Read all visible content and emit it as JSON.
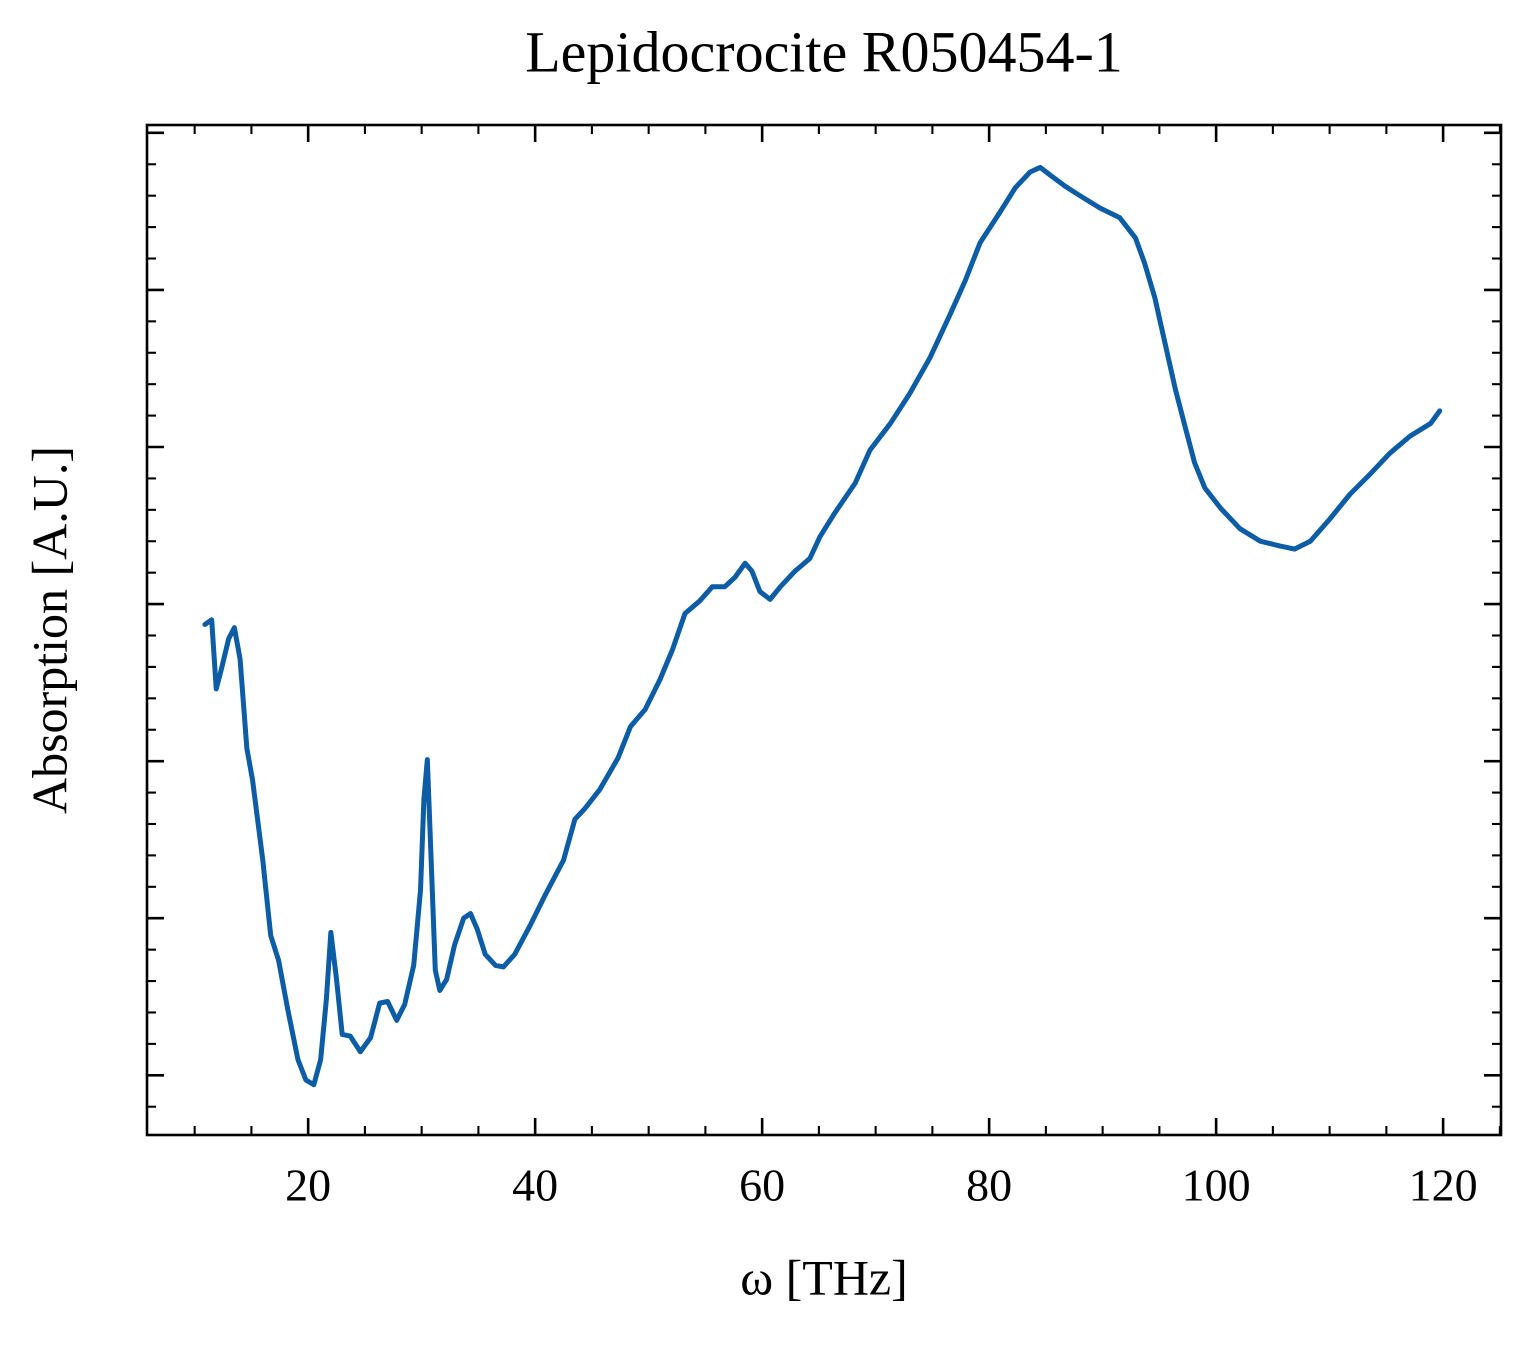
{
  "chart_data": {
    "type": "line",
    "title": "Lepidocrocite R050454-1",
    "xlabel": "ω [THz]",
    "ylabel": "Absorption [A.U.]",
    "xlim": [
      5.8,
      125.1
    ],
    "ylim": [
      -0.38,
      6.05
    ],
    "xticks": [
      20,
      40,
      60,
      80,
      100,
      120
    ],
    "yticks": [
      0,
      1,
      2,
      3,
      4,
      5,
      6
    ],
    "ytick_labels": false,
    "xminor_step": 5,
    "yminor_step": 0.2,
    "series": [
      {
        "color": "#0C5DA5",
        "x": [
          10.9,
          11.5,
          11.9,
          12.3,
          13.0,
          13.5,
          14.0,
          14.6,
          15.1,
          16.0,
          16.7,
          17.4,
          18.2,
          19.1,
          19.8,
          20.5,
          21.1,
          21.6,
          22.0,
          22.5,
          23.0,
          23.7,
          24.6,
          25.5,
          26.3,
          27.0,
          27.8,
          28.5,
          29.3,
          29.9,
          30.2,
          30.5,
          30.8,
          31.2,
          31.6,
          32.2,
          32.9,
          33.7,
          34.3,
          34.9,
          35.6,
          36.5,
          37.2,
          38.2,
          39.6,
          40.9,
          42.5,
          43.5,
          44.4,
          45.7,
          47.3,
          48.4,
          49.7,
          51.0,
          52.1,
          53.2,
          54.5,
          55.6,
          56.7,
          57.6,
          58.5,
          59.1,
          59.8,
          60.7,
          61.6,
          62.9,
          64.2,
          65.1,
          66.4,
          68.2,
          69.5,
          71.3,
          73.0,
          74.8,
          76.6,
          77.9,
          79.2,
          81.0,
          82.3,
          83.6,
          84.5,
          85.4,
          86.7,
          88.0,
          89.8,
          91.5,
          92.9,
          93.7,
          94.6,
          95.5,
          96.4,
          97.3,
          98.1,
          99.0,
          100.4,
          102.1,
          103.9,
          105.6,
          106.9,
          108.3,
          110.0,
          111.8,
          113.6,
          115.3,
          117.1,
          118.9,
          119.7
        ],
        "values": [
          2.87,
          2.9,
          2.46,
          2.57,
          2.78,
          2.85,
          2.65,
          2.08,
          1.88,
          1.37,
          0.89,
          0.73,
          0.42,
          0.1,
          -0.03,
          -0.06,
          0.1,
          0.48,
          0.91,
          0.61,
          0.26,
          0.25,
          0.15,
          0.24,
          0.46,
          0.47,
          0.35,
          0.45,
          0.7,
          1.18,
          1.76,
          2.01,
          1.44,
          0.67,
          0.54,
          0.61,
          0.83,
          1.0,
          1.03,
          0.93,
          0.77,
          0.7,
          0.69,
          0.77,
          0.96,
          1.15,
          1.37,
          1.63,
          1.7,
          1.82,
          2.02,
          2.22,
          2.33,
          2.52,
          2.71,
          2.94,
          3.02,
          3.11,
          3.11,
          3.17,
          3.26,
          3.21,
          3.08,
          3.03,
          3.11,
          3.21,
          3.29,
          3.43,
          3.58,
          3.77,
          3.98,
          4.15,
          4.34,
          4.57,
          4.85,
          5.06,
          5.3,
          5.5,
          5.65,
          5.75,
          5.78,
          5.73,
          5.66,
          5.6,
          5.52,
          5.46,
          5.33,
          5.17,
          4.95,
          4.66,
          4.37,
          4.12,
          3.9,
          3.74,
          3.61,
          3.48,
          3.4,
          3.37,
          3.35,
          3.4,
          3.54,
          3.7,
          3.83,
          3.96,
          4.07,
          4.15,
          4.23
        ]
      }
    ]
  }
}
